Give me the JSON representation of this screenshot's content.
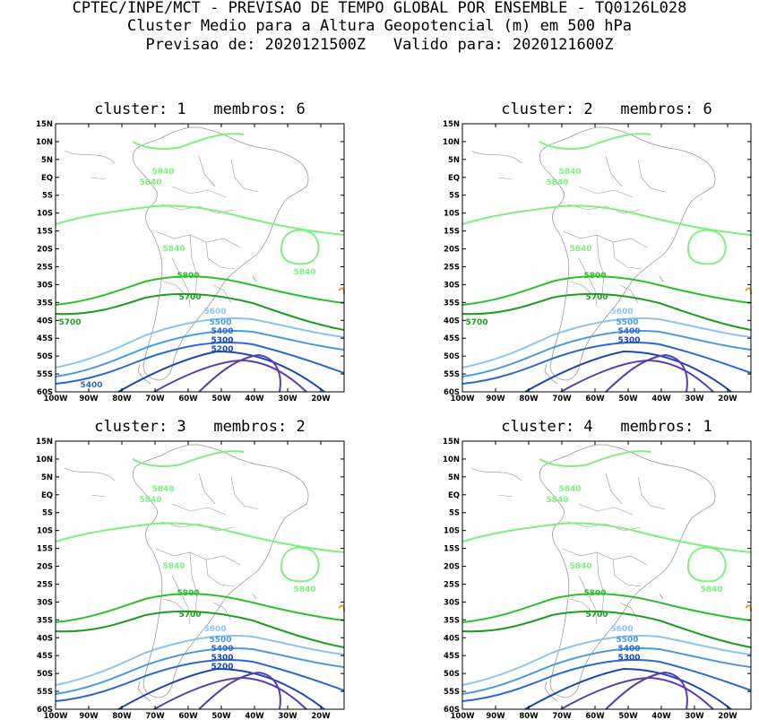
{
  "header": {
    "line1": "CPTEC/INPE/MCT - PREVISAO DE TEMPO GLOBAL POR ENSEMBLE - TQ0126L028",
    "line2": "Cluster Medio para a Altura Geopotencial (m) em 500 hPa",
    "line3": "Previsao de: 2020121500Z   Valido para: 2020121600Z"
  },
  "axes": {
    "lat_labels": [
      "15N",
      "10N",
      "5N",
      "EQ",
      "5S",
      "10S",
      "15S",
      "20S",
      "25S",
      "30S",
      "35S",
      "40S",
      "45S",
      "50S",
      "55S",
      "60S"
    ],
    "lon_labels": [
      "100W",
      "90W",
      "80W",
      "70W",
      "60W",
      "50W",
      "40W",
      "30W",
      "20W"
    ]
  },
  "colors": {
    "c5840": "#7ef07e",
    "c5800": "#2cc02c",
    "c5700": "#1e9e1e",
    "c5600": "#8cc4f0",
    "c5500": "#4a9ce0",
    "c5400": "#2a6ad0",
    "c5300": "#1c48b4",
    "c5200": "#5a3cb4",
    "c_high": "#f0a020",
    "coast": "#9a9a9a"
  },
  "panels": [
    {
      "title": "cluster: 1   membros: 6",
      "labels": {
        "l5840a": "5840",
        "l5840b": "5840",
        "l5840c": "5840",
        "l5840d": "5840",
        "l5800": "5800",
        "l5700": "5700",
        "l5700w": "5700",
        "l5600": "5600",
        "l5500": "5500",
        "l5400": "5400",
        "l5400w": "5400",
        "l5300": "5300",
        "l5200": "5200"
      }
    },
    {
      "title": "cluster: 2   membros: 6",
      "labels": {
        "l5840a": "5840",
        "l5840b": "5840",
        "l5840c": "5840",
        "l5800": "5800",
        "l5700": "5700",
        "l5700w": "5700",
        "l5600": "5600",
        "l5500": "5500",
        "l5400": "5400",
        "l5300": "5300"
      }
    },
    {
      "title": "cluster: 3   membros: 2",
      "labels": {
        "l5840a": "5840",
        "l5840b": "5840",
        "l5840c": "5840",
        "l5840d": "5840",
        "l5800": "5800",
        "l5700": "5700",
        "l5600": "5600",
        "l5500": "5500",
        "l5400": "5400",
        "l5300": "5300",
        "l5200": "5200"
      }
    },
    {
      "title": "cluster: 4   membros: 1",
      "labels": {
        "l5840a": "5840",
        "l5840b": "5840",
        "l5840c": "5840",
        "l5840d": "5840",
        "l5800": "5800",
        "l5700": "5700",
        "l5600": "5600",
        "l5500": "5500",
        "l5400": "5400",
        "l5300": "5300"
      }
    }
  ]
}
